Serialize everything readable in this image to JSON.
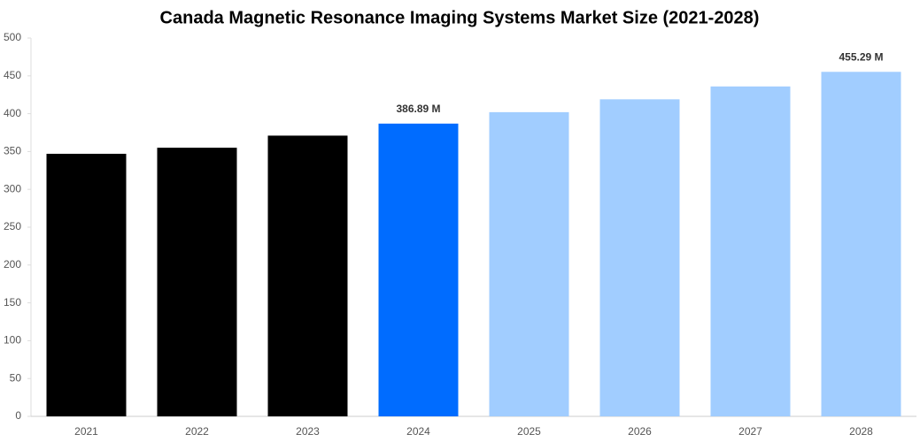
{
  "chart_data": {
    "type": "bar",
    "title": "Canada Magnetic Resonance Imaging Systems Market Size (2021-2028)",
    "categories": [
      "2021",
      "2022",
      "2023",
      "2024",
      "2025",
      "2026",
      "2027",
      "2028"
    ],
    "values": [
      347,
      355,
      371,
      386.89,
      402,
      419,
      436,
      455.29
    ],
    "value_labels": [
      null,
      null,
      null,
      "386.89 M",
      null,
      null,
      null,
      "455.29 M"
    ],
    "colors": [
      "#000000",
      "#000000",
      "#000000",
      "#006cff",
      "#a1cdff",
      "#a1cdff",
      "#a1cdff",
      "#a1cdff"
    ],
    "ylim": [
      0,
      500
    ],
    "yticks": [
      0,
      50,
      100,
      150,
      200,
      250,
      300,
      350,
      400,
      450,
      500
    ],
    "grid": false
  }
}
